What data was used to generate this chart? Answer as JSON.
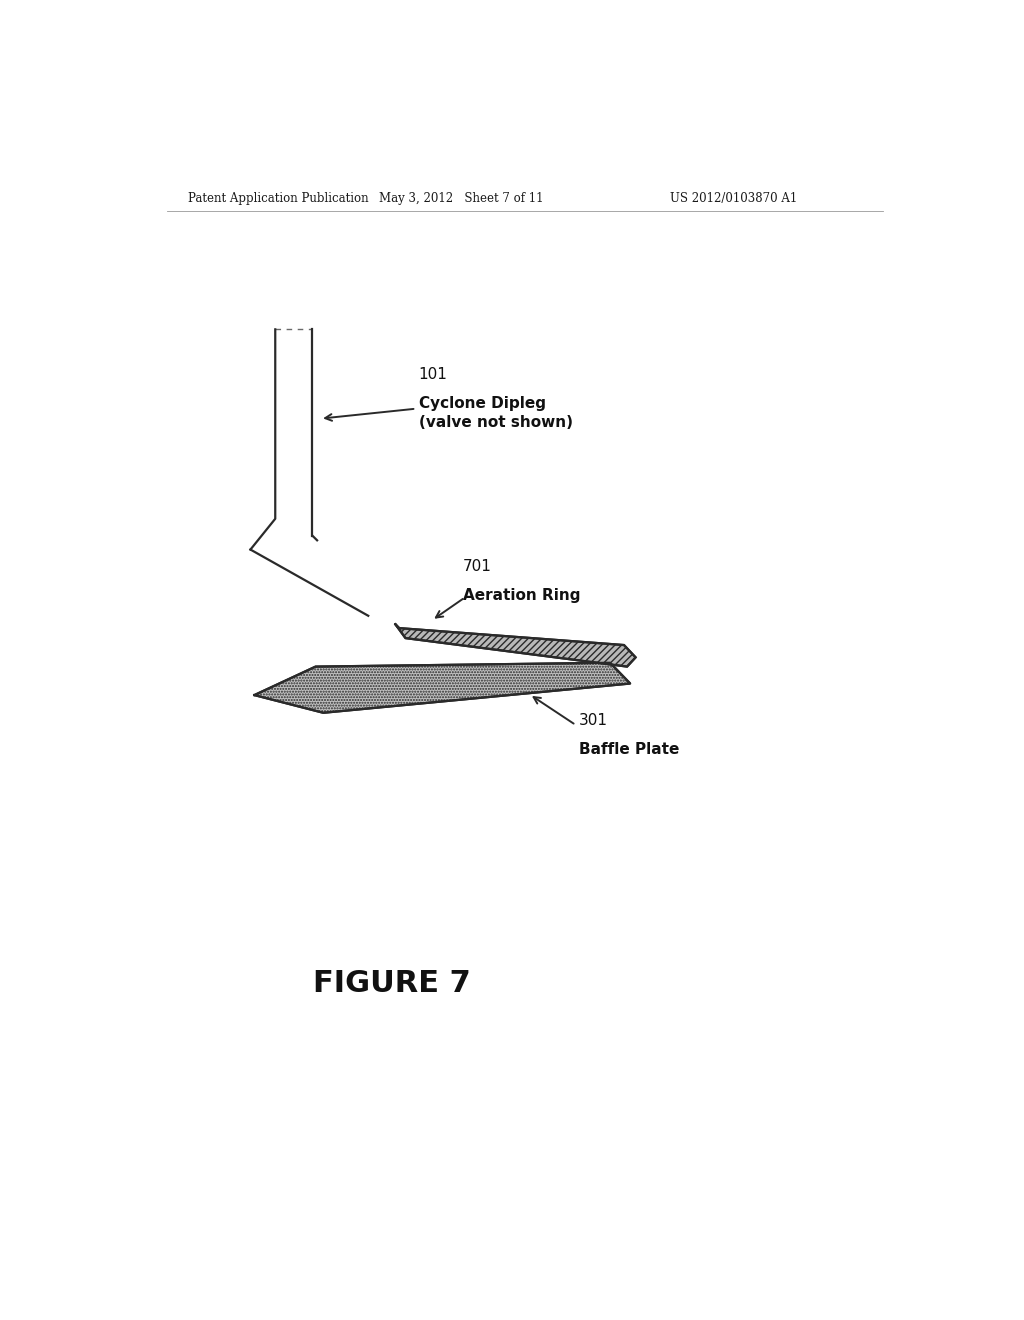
{
  "bg_color": "#ffffff",
  "header_left": "Patent Application Publication",
  "header_center": "May 3, 2012   Sheet 7 of 11",
  "header_right": "US 2012/0103870 A1",
  "figure_label": "FIGURE 7",
  "label_101": "101",
  "label_101_line1": "Cyclone Dipleg",
  "label_101_line2": "(valve not shown)",
  "label_701": "701",
  "label_701_text": "Aeration Ring",
  "label_301": "301",
  "label_301_text": "Baffle Plate",
  "line_color": "#2a2a2a",
  "header_line_color": "#999999"
}
